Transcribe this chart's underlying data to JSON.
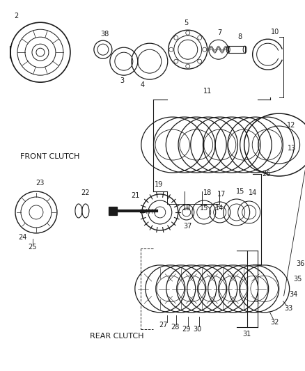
{
  "bg_color": "#ffffff",
  "line_color": "#1a1a1a",
  "front_clutch_label": "FRONT CLUTCH",
  "rear_clutch_label": "REAR CLUTCH",
  "figw": 4.38,
  "figh": 5.33,
  "dpi": 100
}
